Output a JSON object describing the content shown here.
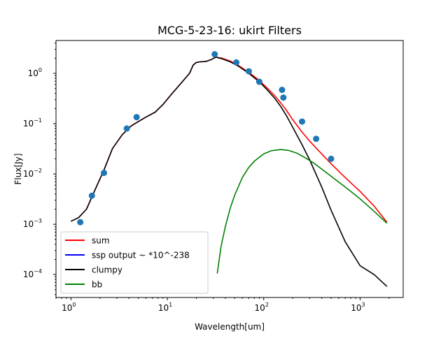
{
  "chart_data": {
    "type": "line",
    "title": "MCG-5-23-16: ukirt Filters",
    "xlabel": "Wavelength[um]",
    "ylabel": "Flux[Jy]",
    "xscale": "log",
    "yscale": "log",
    "xlim": [
      0.7,
      2800
    ],
    "ylim": [
      3.5e-05,
      4.5
    ],
    "grid": false,
    "legend_position": "lower-left",
    "x_ticks": [
      {
        "value": 1,
        "base": "10",
        "exp": "0"
      },
      {
        "value": 10,
        "base": "10",
        "exp": "1"
      },
      {
        "value": 100,
        "base": "10",
        "exp": "2"
      },
      {
        "value": 1000,
        "base": "10",
        "exp": "3"
      }
    ],
    "y_ticks": [
      {
        "value": 0.0001,
        "base": "10",
        "exp": "−4"
      },
      {
        "value": 0.001,
        "base": "10",
        "exp": "−3"
      },
      {
        "value": 0.01,
        "base": "10",
        "exp": "−2"
      },
      {
        "value": 0.1,
        "base": "10",
        "exp": "−1"
      },
      {
        "value": 1,
        "base": "10",
        "exp": "0"
      }
    ],
    "series": [
      {
        "name": "sum",
        "color": "#ff0000",
        "x": [
          1.0,
          1.2,
          1.45,
          1.75,
          2.2,
          2.7,
          3.4,
          4.2,
          5.0,
          6.0,
          7.5,
          9.0,
          11,
          14,
          17,
          18.5,
          20,
          22,
          25,
          28,
          32,
          37,
          45,
          55,
          70,
          90,
          110,
          130,
          150,
          170,
          200,
          250,
          300,
          400,
          500,
          700,
          1000,
          1400,
          1900
        ],
        "y": [
          0.00115,
          0.00135,
          0.002,
          0.0045,
          0.012,
          0.032,
          0.06,
          0.09,
          0.11,
          0.135,
          0.17,
          0.24,
          0.38,
          0.65,
          1.0,
          1.45,
          1.65,
          1.7,
          1.72,
          1.85,
          2.1,
          2.0,
          1.75,
          1.42,
          1.05,
          0.72,
          0.5,
          0.36,
          0.26,
          0.19,
          0.12,
          0.068,
          0.045,
          0.025,
          0.016,
          0.0085,
          0.0045,
          0.0023,
          0.0011
        ]
      },
      {
        "name": "ssp output ~ *10^-238",
        "color": "#0000ff",
        "x": [],
        "y": []
      },
      {
        "name": "clumpy",
        "color": "#000000",
        "x": [
          1.0,
          1.2,
          1.45,
          1.75,
          2.2,
          2.7,
          3.4,
          4.2,
          5.0,
          6.0,
          7.5,
          9.0,
          11,
          14,
          17,
          18.5,
          20,
          22,
          25,
          28,
          32,
          37,
          45,
          55,
          70,
          90,
          110,
          130,
          150,
          170,
          200,
          250,
          300,
          400,
          500,
          700,
          1000,
          1400,
          1900
        ],
        "y": [
          0.00115,
          0.00135,
          0.002,
          0.0045,
          0.012,
          0.032,
          0.06,
          0.09,
          0.11,
          0.135,
          0.17,
          0.24,
          0.38,
          0.65,
          1.0,
          1.45,
          1.65,
          1.7,
          1.72,
          1.85,
          2.1,
          1.95,
          1.7,
          1.38,
          1.0,
          0.68,
          0.46,
          0.32,
          0.22,
          0.15,
          0.085,
          0.038,
          0.019,
          0.0055,
          0.0019,
          0.00045,
          0.00015,
          0.0001,
          5.8e-05
        ]
      },
      {
        "name": "bb",
        "color": "#008000",
        "x": [
          33,
          36,
          40,
          45,
          50,
          60,
          70,
          80,
          100,
          120,
          150,
          180,
          220,
          270,
          330,
          400,
          500,
          700,
          1000,
          1400,
          1900
        ],
        "y": [
          0.000105,
          0.00035,
          0.0009,
          0.0021,
          0.0038,
          0.0085,
          0.0135,
          0.018,
          0.025,
          0.029,
          0.0305,
          0.0295,
          0.026,
          0.021,
          0.0165,
          0.0125,
          0.009,
          0.0055,
          0.0032,
          0.0018,
          0.00105
        ]
      }
    ],
    "points": {
      "color": "#1f77b4",
      "x": [
        1.25,
        1.65,
        2.2,
        3.8,
        4.8,
        31,
        52,
        70,
        90,
        155,
        160,
        250,
        350,
        500
      ],
      "y": [
        0.0011,
        0.0037,
        0.0105,
        0.08,
        0.135,
        2.4,
        1.65,
        1.1,
        0.68,
        0.47,
        0.33,
        0.11,
        0.05,
        0.02
      ]
    }
  }
}
